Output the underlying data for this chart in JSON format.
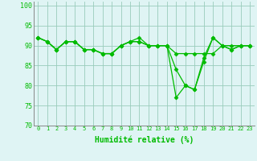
{
  "title": "",
  "xlabel": "Humidité relative (%)",
  "ylabel": "",
  "background_color": "#dff4f4",
  "line_color": "#00bb00",
  "marker": "D",
  "markersize": 2.5,
  "linewidth": 0.9,
  "xlim": [
    -0.5,
    23.5
  ],
  "ylim": [
    70,
    101
  ],
  "yticks": [
    70,
    75,
    80,
    85,
    90,
    95,
    100
  ],
  "xtick_labels": [
    "0",
    "1",
    "2",
    "3",
    "4",
    "5",
    "6",
    "7",
    "8",
    "9",
    "10",
    "11",
    "12",
    "13",
    "14",
    "15",
    "16",
    "17",
    "18",
    "19",
    "20",
    "21",
    "22",
    "23"
  ],
  "grid_color": "#99ccbb",
  "series": [
    [
      92,
      91,
      89,
      91,
      91,
      89,
      89,
      88,
      88,
      90,
      91,
      91,
      90,
      90,
      90,
      84,
      80,
      79,
      86,
      92,
      90,
      89,
      90,
      90
    ],
    [
      92,
      91,
      89,
      91,
      91,
      89,
      89,
      88,
      88,
      90,
      91,
      92,
      90,
      90,
      90,
      77,
      80,
      79,
      87,
      92,
      90,
      89,
      90,
      90
    ],
    [
      92,
      91,
      89,
      91,
      91,
      89,
      89,
      88,
      88,
      90,
      91,
      91,
      90,
      90,
      90,
      88,
      88,
      88,
      88,
      88,
      90,
      90,
      90,
      90
    ]
  ],
  "xlabel_fontsize": 7,
  "xlabel_fontweight": "bold",
  "tick_fontsize": 5,
  "ytick_fontsize": 6
}
